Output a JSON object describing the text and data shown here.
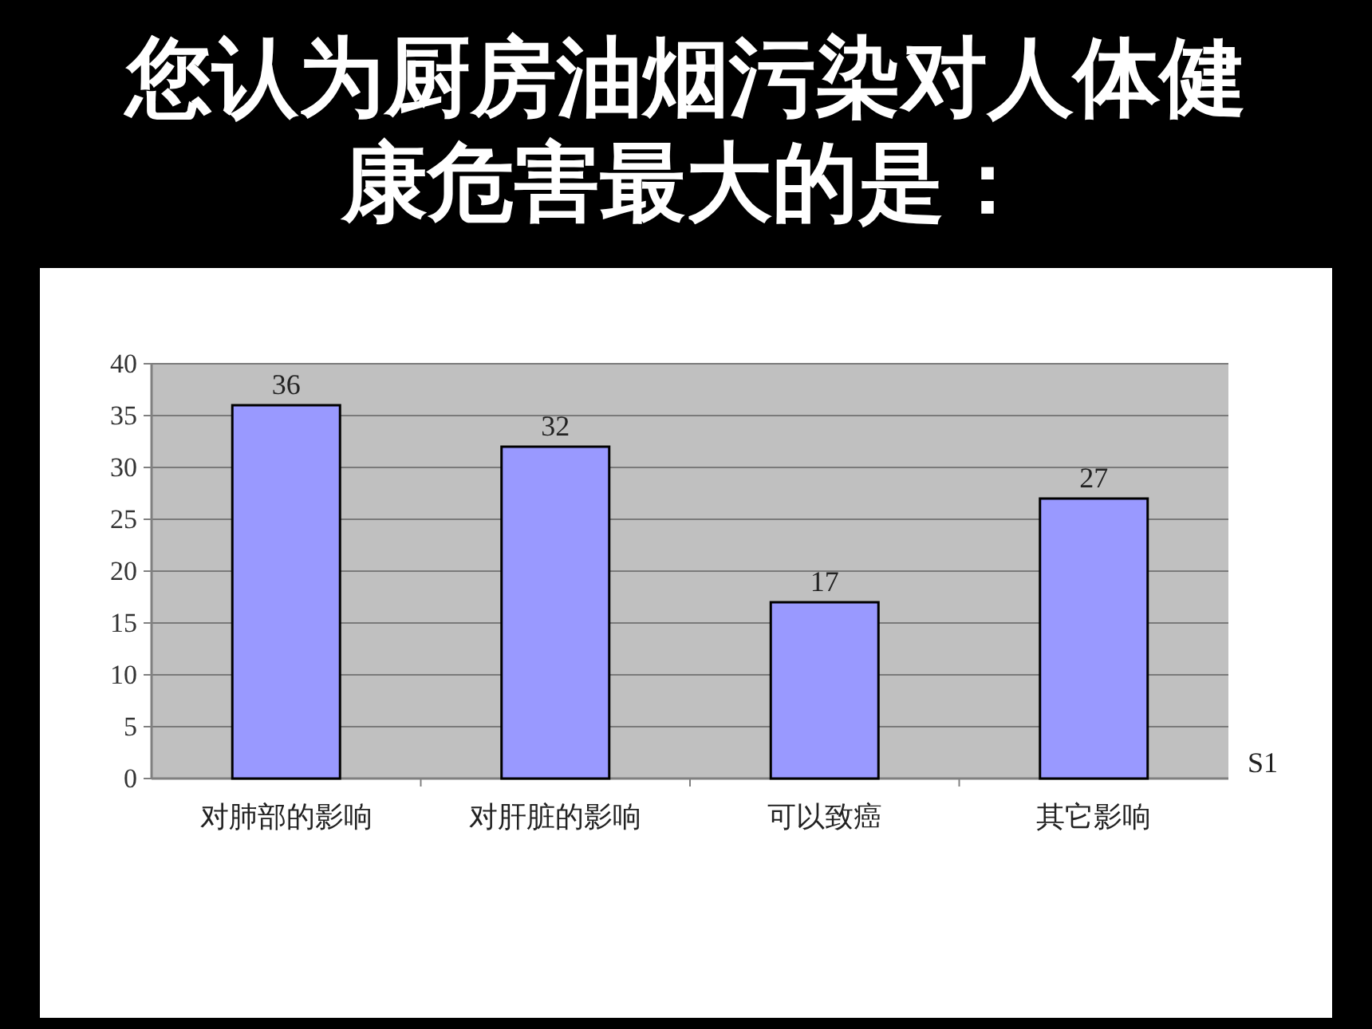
{
  "chart_data": {
    "type": "bar",
    "title": "您认为厨房油烟污染对人体健康危害最大的是：",
    "categories": [
      "对肺部的影响",
      "对肝脏的影响",
      "可以致癌",
      "其它影响"
    ],
    "series": [
      {
        "name": "S1",
        "color": "#9999ff",
        "values": [
          36,
          32,
          17,
          27
        ]
      }
    ],
    "ylim": [
      0,
      40
    ],
    "yticks": [
      0,
      5,
      10,
      15,
      20,
      25,
      30,
      35,
      40
    ],
    "grid": "y",
    "data_labels": true
  }
}
